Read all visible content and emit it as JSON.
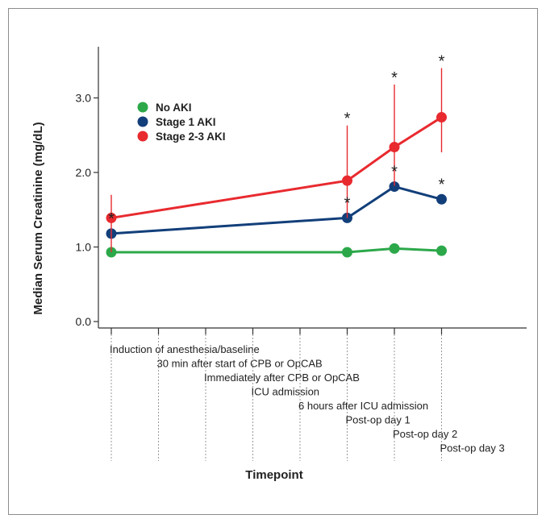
{
  "colors": {
    "no_aki": "#2ca84a",
    "stage1": "#123f7a",
    "stage23": "#e82a2f",
    "axis": "#333333",
    "guide": "#9a9a9a",
    "frame": "#8c8c8c"
  },
  "chart_data": {
    "type": "line",
    "ylabel": "Median Serum Creatinine (mg/dL)",
    "xlabel": "Timepoint",
    "ylim": [
      0,
      3.5
    ],
    "y_ticks": [
      "0.0",
      "1.0",
      "2.0",
      "3.0"
    ],
    "grid": false,
    "legend_position": "upper-left",
    "categories": [
      "Induction of anesthesia/baseline",
      "30 min after start of CPB or OpCAB",
      "Immediately after CPB or OpCAB",
      "ICU admission",
      "6 hours after ICU admission",
      "Post-op day 1",
      "Post-op day 2",
      "Post-op day 3"
    ],
    "series": [
      {
        "name": "No AKI",
        "color": "#2ca84a",
        "values": [
          0.93,
          null,
          null,
          null,
          null,
          0.93,
          0.98,
          0.95
        ],
        "error_high": [
          null,
          null,
          null,
          null,
          null,
          null,
          null,
          null
        ],
        "significant": [
          false,
          false,
          false,
          false,
          false,
          false,
          false,
          false
        ]
      },
      {
        "name": "Stage 1 AKI",
        "color": "#123f7a",
        "values": [
          1.18,
          null,
          null,
          null,
          null,
          1.39,
          1.81,
          1.64
        ],
        "error_high": [
          null,
          null,
          null,
          null,
          null,
          null,
          null,
          null
        ],
        "significant": [
          true,
          false,
          false,
          false,
          false,
          true,
          true,
          true
        ]
      },
      {
        "name": "Stage 2-3 AKI",
        "color": "#e82a2f",
        "values": [
          1.39,
          null,
          null,
          null,
          null,
          1.89,
          2.34,
          2.74
        ],
        "error_low": [
          0.93,
          null,
          null,
          null,
          null,
          1.39,
          1.82,
          2.27
        ],
        "error_high": [
          1.7,
          null,
          null,
          null,
          null,
          2.63,
          3.18,
          3.4
        ],
        "significant": [
          false,
          false,
          false,
          false,
          false,
          true,
          true,
          true
        ]
      }
    ],
    "significance_marker": "*"
  }
}
